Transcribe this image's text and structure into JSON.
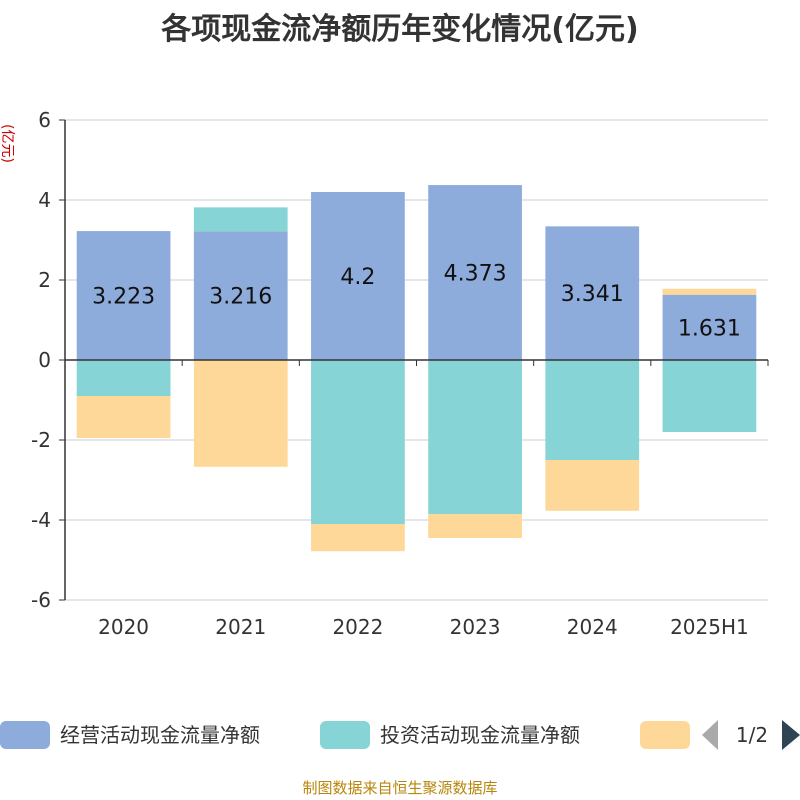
{
  "chart_data": {
    "type": "bar",
    "stacked": true,
    "title": "各项现金流净额历年变化情况(亿元)",
    "ylabel": "(亿元)",
    "ylim": [
      -6,
      6
    ],
    "yticks": [
      6,
      4,
      2,
      0,
      -2,
      -4,
      -6
    ],
    "grid": true,
    "categories": [
      "2020",
      "2021",
      "2022",
      "2023",
      "2024",
      "2025H1"
    ],
    "series": [
      {
        "name": "经营活动现金流量净额",
        "color": "#8eacdb",
        "values": [
          3.223,
          3.216,
          4.2,
          4.373,
          3.341,
          1.631
        ],
        "labels": [
          "3.223",
          "3.216",
          "4.2",
          "4.373",
          "3.341",
          "1.631"
        ]
      },
      {
        "name": "投资活动现金流量净额",
        "color": "#86d4d6",
        "values": [
          -0.9,
          0.6,
          -4.1,
          -3.85,
          -2.5,
          -1.8
        ]
      },
      {
        "name": "",
        "color": "#fdd898",
        "values": [
          -1.05,
          -2.67,
          -0.68,
          -0.6,
          -1.27,
          0.15
        ]
      }
    ],
    "legend_position": "bottom",
    "legend_page": "1/2"
  },
  "source": "制图数据来自恒生聚源数据库"
}
